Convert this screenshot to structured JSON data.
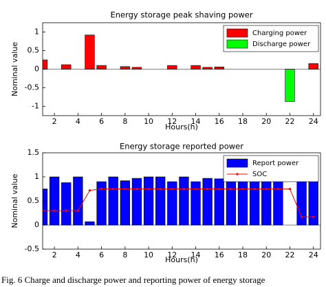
{
  "chart_data": [
    {
      "type": "bar",
      "title": "Energy storage peak shaving power",
      "x_label": "Hours(h)",
      "y_label": "Nominal value",
      "x": [
        1,
        2,
        3,
        4,
        5,
        6,
        7,
        8,
        9,
        10,
        11,
        12,
        13,
        14,
        15,
        16,
        17,
        18,
        19,
        20,
        21,
        22,
        23,
        24
      ],
      "xlim": [
        1,
        24.6
      ],
      "xticks": [
        2,
        4,
        6,
        8,
        10,
        12,
        14,
        16,
        18,
        20,
        22,
        24
      ],
      "ylim": [
        -1.25,
        1.25
      ],
      "yticks": [
        {
          "value": -1,
          "label": "-1"
        },
        {
          "value": -0.5,
          "label": "-0.5"
        },
        0,
        {
          "value": 0.5,
          "label": "0.5"
        },
        1
      ],
      "legend": "upper right",
      "series": [
        {
          "name": "Charging power",
          "type": "bar",
          "color": "#ff0000",
          "values": [
            0.25,
            0,
            0.12,
            0,
            0.92,
            0.1,
            0,
            0.07,
            0.05,
            0,
            0,
            0.1,
            0,
            0.1,
            0.05,
            0.06,
            0,
            0,
            0,
            0,
            0,
            0,
            0,
            0.15
          ]
        },
        {
          "name": "Discharge power",
          "type": "bar",
          "color": "#00ff00",
          "values": [
            0,
            0,
            0,
            0,
            0,
            0,
            0,
            0,
            0,
            0,
            0,
            0,
            0,
            0,
            0,
            0,
            0,
            0,
            0,
            0,
            0,
            -0.87,
            0,
            0
          ]
        }
      ]
    },
    {
      "type": "bar",
      "title": "Energy storage reported power",
      "x_label": "Hours(h)",
      "y_label": "Nominal value",
      "x": [
        1,
        2,
        3,
        4,
        5,
        6,
        7,
        8,
        9,
        10,
        11,
        12,
        13,
        14,
        15,
        16,
        17,
        18,
        19,
        20,
        21,
        22,
        23,
        24
      ],
      "xlim": [
        1,
        24.6
      ],
      "xticks": [
        2,
        4,
        6,
        8,
        10,
        12,
        14,
        16,
        18,
        20,
        22,
        24
      ],
      "ylim": [
        -0.5,
        1.5
      ],
      "yticks": [
        {
          "value": -0.5,
          "label": "-0.5"
        },
        0,
        {
          "value": 0.5,
          "label": "0.5"
        },
        1,
        {
          "value": 1.5,
          "label": "1.5"
        }
      ],
      "legend": "upper right",
      "series": [
        {
          "name": "Report power",
          "type": "bar",
          "color": "#0000ff",
          "values": [
            0.75,
            1.0,
            0.88,
            1.0,
            0.07,
            0.9,
            1.0,
            0.92,
            0.97,
            1.0,
            1.0,
            0.9,
            1.0,
            0.9,
            0.97,
            0.96,
            1.0,
            0.95,
            0.97,
            1.0,
            1.0,
            0,
            0.98,
            1.0
          ]
        },
        {
          "name": "SOC",
          "type": "line",
          "color": "#ff0000",
          "values": [
            0.3,
            0.3,
            0.3,
            0.3,
            0.72,
            0.75,
            0.75,
            0.75,
            0.75,
            0.75,
            0.75,
            0.75,
            0.75,
            0.75,
            0.75,
            0.75,
            0.75,
            0.75,
            0.75,
            0.75,
            0.75,
            0.75,
            0.17,
            0.17
          ]
        }
      ]
    }
  ],
  "caption": "Fig. 6    Charge and discharge power and reporting power of energy storage"
}
